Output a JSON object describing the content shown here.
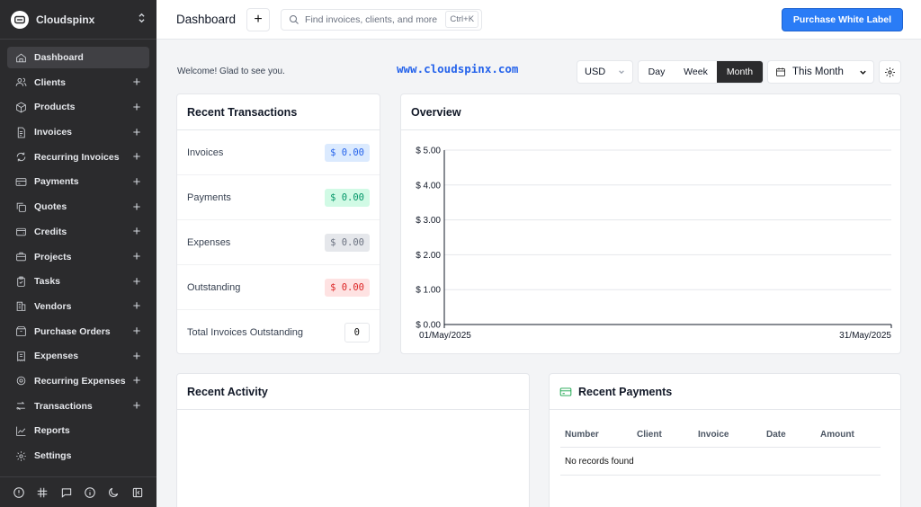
{
  "brand": {
    "name": "Cloudspinx"
  },
  "sidebar": {
    "items": [
      {
        "label": "Dashboard",
        "icon": "home-icon",
        "plus": false,
        "active": true
      },
      {
        "label": "Clients",
        "icon": "users-icon",
        "plus": true
      },
      {
        "label": "Products",
        "icon": "box-icon",
        "plus": true
      },
      {
        "label": "Invoices",
        "icon": "file-icon",
        "plus": true
      },
      {
        "label": "Recurring Invoices",
        "icon": "refresh-icon",
        "plus": true
      },
      {
        "label": "Payments",
        "icon": "credit-card-icon",
        "plus": true
      },
      {
        "label": "Quotes",
        "icon": "copy-icon",
        "plus": true
      },
      {
        "label": "Credits",
        "icon": "wallet-icon",
        "plus": true
      },
      {
        "label": "Projects",
        "icon": "briefcase-icon",
        "plus": true
      },
      {
        "label": "Tasks",
        "icon": "clipboard-icon",
        "plus": true
      },
      {
        "label": "Vendors",
        "icon": "building-icon",
        "plus": true
      },
      {
        "label": "Purchase Orders",
        "icon": "package-icon",
        "plus": true
      },
      {
        "label": "Expenses",
        "icon": "receipt-icon",
        "plus": true
      },
      {
        "label": "Recurring Expenses",
        "icon": "cycle-icon",
        "plus": true
      },
      {
        "label": "Transactions",
        "icon": "transfer-icon",
        "plus": true
      },
      {
        "label": "Reports",
        "icon": "chart-line-icon",
        "plus": false
      },
      {
        "label": "Settings",
        "icon": "gear-icon",
        "plus": false
      }
    ],
    "footer_icons": [
      "alert-icon",
      "slack-icon",
      "chat-icon",
      "info-icon",
      "moon-icon",
      "collapse-icon"
    ]
  },
  "header": {
    "title": "Dashboard",
    "add_label": "+",
    "search_placeholder": "Find invoices, clients, and more",
    "search_shortcut": "Ctrl+K",
    "purchase_label": "Purchase White Label"
  },
  "toolbar": {
    "welcome": "Welcome! Glad to see you.",
    "site_url": "www.cloudspinx.com",
    "currency": "USD",
    "periods": [
      "Day",
      "Week",
      "Month"
    ],
    "active_period": "Month",
    "date_range": "This Month"
  },
  "recent_transactions": {
    "title": "Recent Transactions",
    "rows": [
      {
        "label": "Invoices",
        "value": "$ 0.00"
      },
      {
        "label": "Payments",
        "value": "$ 0.00"
      },
      {
        "label": "Expenses",
        "value": "$ 0.00"
      },
      {
        "label": "Outstanding",
        "value": "$ 0.00"
      },
      {
        "label": "Total Invoices Outstanding",
        "value": "0"
      }
    ]
  },
  "overview": {
    "title": "Overview"
  },
  "chart_data": {
    "type": "line",
    "x": [
      "01/May/2025",
      "31/May/2025"
    ],
    "series": [
      {
        "values": [
          0,
          0
        ]
      }
    ],
    "yticks": [
      "$ 0.00",
      "$ 1.00",
      "$ 2.00",
      "$ 3.00",
      "$ 4.00",
      "$ 5.00"
    ],
    "ylim": [
      0,
      5
    ],
    "grid": true
  },
  "recent_activity": {
    "title": "Recent Activity"
  },
  "recent_payments": {
    "title": "Recent Payments",
    "columns": [
      "Number",
      "Client",
      "Invoice",
      "Date",
      "Amount"
    ],
    "empty": "No records found"
  },
  "colors": {
    "accent": "#2a7cf6",
    "sidebar": "#2b2b2d",
    "url": "#2563eb"
  }
}
